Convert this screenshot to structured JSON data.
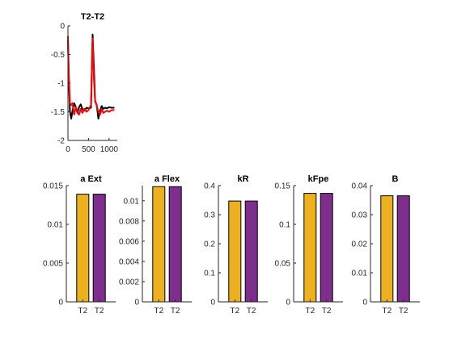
{
  "chart_data": [
    {
      "type": "line",
      "title": "T2-T2",
      "xlim": [
        0,
        1200
      ],
      "ylim": [
        -2,
        0
      ],
      "xticks": [
        0,
        500,
        1000
      ],
      "xtick_labels": [
        "0",
        "500",
        "1000"
      ],
      "yticks": [
        0,
        -0.5,
        -1,
        -1.5,
        -2
      ],
      "ytick_labels": [
        "0",
        "-0.5",
        "-1",
        "-1.5",
        "-2"
      ],
      "grid": false,
      "series": [
        {
          "color": "#000000",
          "x": [
            0,
            20,
            50,
            80,
            110,
            150,
            190,
            230,
            270,
            310,
            350,
            400,
            450,
            500,
            560,
            600,
            630,
            660,
            700,
            740,
            780,
            820,
            860,
            900,
            950,
            1000,
            1060,
            1130
          ],
          "y": [
            -0.25,
            -0.9,
            -1.5,
            -1.62,
            -1.48,
            -1.35,
            -1.42,
            -1.52,
            -1.42,
            -1.37,
            -1.45,
            -1.48,
            -1.43,
            -1.44,
            -1.43,
            -0.15,
            -0.7,
            -1.32,
            -1.38,
            -1.62,
            -1.48,
            -1.4,
            -1.45,
            -1.43,
            -1.44,
            -1.42,
            -1.43,
            -1.43
          ]
        },
        {
          "color": "#ff0000",
          "x": [
            0,
            20,
            50,
            80,
            110,
            150,
            190,
            230,
            270,
            310,
            350,
            400,
            450,
            500,
            560,
            600,
            630,
            660,
            700,
            740,
            780,
            820,
            860,
            900,
            950,
            1000,
            1060,
            1130
          ],
          "y": [
            -0.18,
            -0.8,
            -1.35,
            -1.38,
            -1.35,
            -1.55,
            -1.42,
            -1.5,
            -1.55,
            -1.45,
            -1.52,
            -1.45,
            -1.5,
            -1.47,
            -1.38,
            -0.22,
            -0.9,
            -1.3,
            -1.4,
            -1.5,
            -1.55,
            -1.45,
            -1.52,
            -1.5,
            -1.48,
            -1.5,
            -1.47,
            -1.47
          ]
        }
      ]
    },
    {
      "type": "bar",
      "title": "a Ext",
      "categories": [
        "T2",
        "T2"
      ],
      "values": [
        0.0139,
        0.0139
      ],
      "colors": [
        "#EDB120",
        "#7E2F8E"
      ],
      "ylim": [
        0,
        0.015
      ],
      "yticks": [
        0,
        0.005,
        0.01,
        0.015
      ],
      "ytick_labels": [
        "0",
        "0.005",
        "0.01",
        "0.015"
      ]
    },
    {
      "type": "bar",
      "title": "a Flex",
      "categories": [
        "T2",
        "T2"
      ],
      "values": [
        0.0114,
        0.0114
      ],
      "colors": [
        "#EDB120",
        "#7E2F8E"
      ],
      "ylim": [
        0,
        0.0115
      ],
      "yticks": [
        0,
        0.002,
        0.004,
        0.006,
        0.008,
        0.01
      ],
      "ytick_labels": [
        "0",
        "0.002",
        "0.004",
        "0.006",
        "0.008",
        "0.01"
      ]
    },
    {
      "type": "bar",
      "title": "kR",
      "categories": [
        "T2",
        "T2"
      ],
      "values": [
        0.347,
        0.347
      ],
      "colors": [
        "#EDB120",
        "#7E2F8E"
      ],
      "ylim": [
        0,
        0.4
      ],
      "yticks": [
        0,
        0.1,
        0.2,
        0.3,
        0.4
      ],
      "ytick_labels": [
        "0",
        "0.1",
        "0.2",
        "0.3",
        "0.4"
      ]
    },
    {
      "type": "bar",
      "title": "kFpe",
      "categories": [
        "T2",
        "T2"
      ],
      "values": [
        0.14,
        0.14
      ],
      "colors": [
        "#EDB120",
        "#7E2F8E"
      ],
      "ylim": [
        0,
        0.15
      ],
      "yticks": [
        0,
        0.05,
        0.1,
        0.15
      ],
      "ytick_labels": [
        "0",
        "0.05",
        "0.1",
        "0.15"
      ]
    },
    {
      "type": "bar",
      "title": "B",
      "categories": [
        "T2",
        "T2"
      ],
      "values": [
        0.0365,
        0.0365
      ],
      "colors": [
        "#EDB120",
        "#7E2F8E"
      ],
      "ylim": [
        0,
        0.04
      ],
      "yticks": [
        0,
        0.01,
        0.02,
        0.03,
        0.04
      ],
      "ytick_labels": [
        "0",
        "0.01",
        "0.02",
        "0.03",
        "0.04"
      ]
    }
  ]
}
